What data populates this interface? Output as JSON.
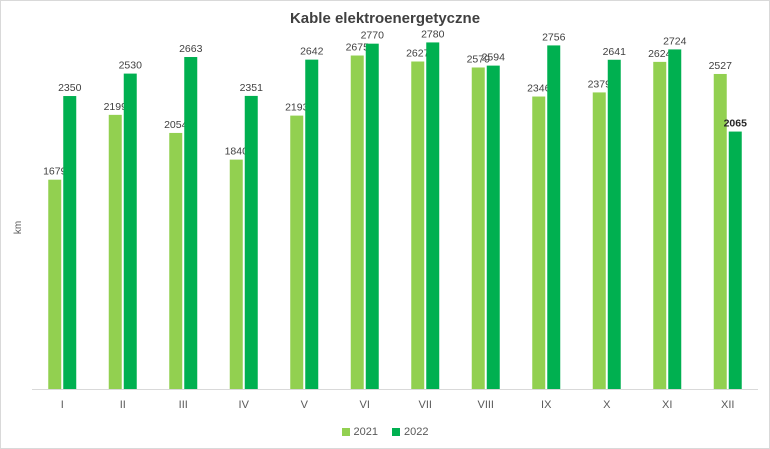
{
  "chart_data": {
    "type": "bar",
    "title": "Kable elektroenergetyczne",
    "xlabel": "",
    "ylabel": "km",
    "ylim": [
      0,
      3000
    ],
    "grid": false,
    "legend_position": "bottom",
    "categories": [
      "I",
      "II",
      "III",
      "IV",
      "V",
      "VI",
      "VII",
      "VIII",
      "IX",
      "X",
      "XI",
      "XII"
    ],
    "series": [
      {
        "name": "2021",
        "color": "#92d050",
        "values": [
          1679,
          2199,
          2054,
          1840,
          2193,
          2675,
          2627,
          2579,
          2346,
          2379,
          2624,
          2527
        ]
      },
      {
        "name": "2022",
        "color": "#00b050",
        "values": [
          2350,
          2530,
          2663,
          2351,
          2642,
          2770,
          2780,
          2594,
          2756,
          2641,
          2724,
          2065
        ]
      }
    ],
    "bold_labels": [
      {
        "series": 1,
        "index": 11
      }
    ]
  }
}
